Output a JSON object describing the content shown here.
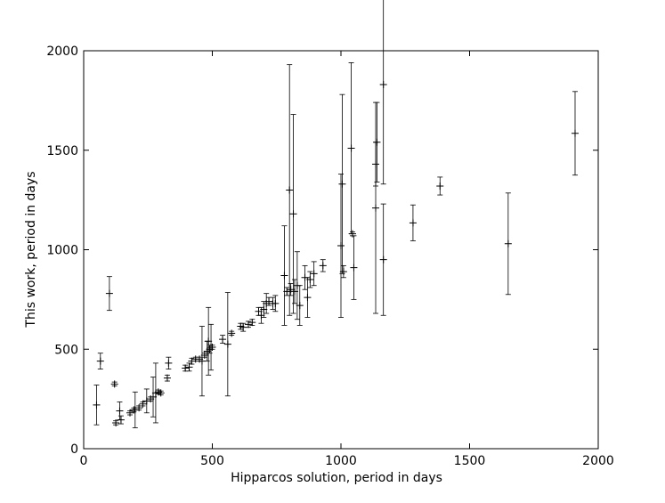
{
  "chart_data": {
    "type": "errorbar-scatter",
    "x_label": "Hipparcos solution, period in days",
    "y_label": "This work, period in days",
    "xlim": [
      0,
      2000
    ],
    "ylim": [
      0,
      2000
    ],
    "xticks": [
      0,
      500,
      1000,
      1500,
      2000
    ],
    "yticks": [
      0,
      500,
      1000,
      1500,
      2000
    ],
    "grid": false,
    "series": [
      {
        "color": "#000000",
        "x": [
          50,
          65,
          100,
          120,
          125,
          140,
          145,
          180,
          195,
          200,
          215,
          230,
          245,
          260,
          270,
          280,
          290,
          300,
          325,
          330,
          395,
          410,
          420,
          435,
          450,
          460,
          470,
          480,
          485,
          490,
          495,
          500,
          540,
          560,
          575,
          610,
          620,
          640,
          655,
          680,
          690,
          700,
          710,
          720,
          735,
          745,
          780,
          790,
          800,
          805,
          815,
          820,
          830,
          840,
          860,
          870,
          880,
          895,
          930,
          1000,
          1005,
          1010,
          1040,
          1045,
          1050,
          1135,
          1135,
          1140,
          1165,
          1165,
          1280,
          1385,
          1650,
          1910
        ],
        "y": [
          220,
          440,
          780,
          325,
          130,
          190,
          145,
          180,
          195,
          195,
          205,
          225,
          240,
          250,
          260,
          280,
          285,
          280,
          355,
          430,
          405,
          410,
          440,
          450,
          450,
          440,
          470,
          490,
          540,
          500,
          510,
          510,
          550,
          525,
          580,
          615,
          610,
          625,
          635,
          690,
          670,
          700,
          730,
          740,
          730,
          730,
          870,
          790,
          1300,
          800,
          1180,
          790,
          820,
          720,
          860,
          760,
          850,
          880,
          920,
          1020,
          1330,
          890,
          1510,
          1080,
          910,
          1430,
          1210,
          1540,
          1830,
          950,
          1135,
          1320,
          1030,
          1585
        ],
        "yerr": [
          100,
          40,
          85,
          10,
          10,
          45,
          20,
          10,
          10,
          90,
          10,
          10,
          60,
          10,
          100,
          150,
          10,
          10,
          15,
          30,
          15,
          20,
          15,
          10,
          10,
          175,
          10,
          50,
          170,
          20,
          115,
          10,
          20,
          260,
          10,
          15,
          20,
          15,
          15,
          20,
          40,
          40,
          50,
          20,
          30,
          40,
          250,
          20,
          630,
          30,
          500,
          60,
          170,
          100,
          60,
          100,
          40,
          60,
          30,
          360,
          450,
          30,
          430,
          10,
          160,
          110,
          530,
          200,
          500,
          280,
          90,
          45,
          255,
          210
        ]
      }
    ]
  }
}
